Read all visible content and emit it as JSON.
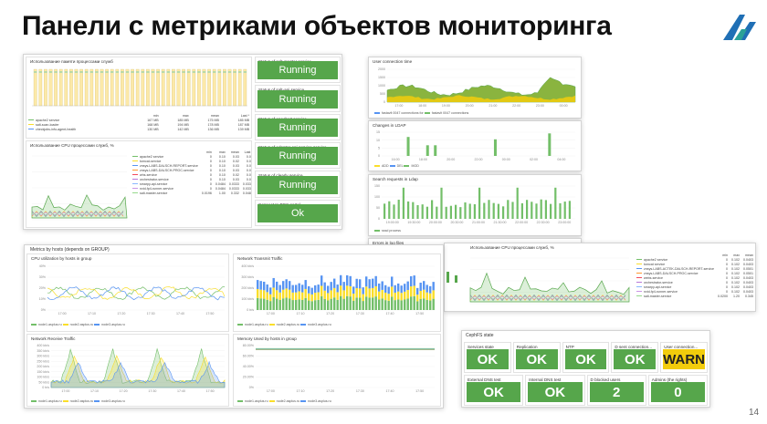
{
  "slide": {
    "title": "Панели с метриками объектов мониторинга",
    "page_number": "14"
  },
  "colors": {
    "ok_green": "#56a64b",
    "warn_yellow": "#f2cc0c",
    "series_green": "#73bf69",
    "series_yellow": "#fade2a",
    "series_blue": "#5794f2",
    "series_orange": "#ff9830",
    "series_purple": "#b877d9",
    "series_red": "#f2495c",
    "series_teal": "#8ab8ff"
  },
  "left_top": {
    "memory_panel": {
      "title": "Использование памяти процессами служб",
      "legend_header": [
        "",
        "min",
        "max",
        "mean",
        "Last *"
      ],
      "legend": [
        {
          "name": "apache2 service",
          "color": "#73bf69",
          "cells": [
            "167 MB",
            "185 MB",
            "175 MB",
            "185 MB"
          ]
        },
        {
          "name": "salt-scan-loader",
          "color": "#fade2a",
          "cells": [
            "168 MB",
            "194 MB",
            "178 MB",
            "187 MB"
          ]
        },
        {
          "name": "checkjobs-info-agent-health",
          "color": "#5794f2",
          "cells": [
            "130 MB",
            "142 MB",
            "136 MB",
            "139 MB"
          ]
        }
      ]
    },
    "cpu_panel": {
      "title": "Использование CPU процессами служб, %",
      "legend_header": [
        "",
        "min",
        "max",
        "mean",
        "Last *"
      ],
      "legend": [
        {
          "name": "apache2 service",
          "color": "#73bf69",
          "cells": [
            "0",
            "0.10",
            "0.03",
            "0.05"
          ]
        },
        {
          "name": "tomcat-service",
          "color": "#fade2a",
          "cells": [
            "0",
            "0.10",
            "0.02",
            "0.03"
          ]
        },
        {
          "name": "znsys-LABS-DALSCH-REPORT-service",
          "color": "#5794f2",
          "cells": [
            "0",
            "0.10",
            "0.03",
            "0.04"
          ]
        },
        {
          "name": "znsys-LABS-DALSCH-PROC-service",
          "color": "#ff9830",
          "cells": [
            "0",
            "0.10",
            "0.03",
            "0.04"
          ]
        },
        {
          "name": "whs-service",
          "color": "#f2495c",
          "cells": [
            "0",
            "0.10",
            "0.02",
            "0.01"
          ]
        },
        {
          "name": "orchestrator-service",
          "color": "#b877d9",
          "cells": [
            "0",
            "0.10",
            "0.03",
            "0.01"
          ]
        },
        {
          "name": "smarpy-api-service",
          "color": "#8ab8ff",
          "cells": [
            "0",
            "0.0484",
            "0.0333",
            "0.0333"
          ]
        },
        {
          "name": "nvid-fp4-runner-service",
          "color": "#ca95e5",
          "cells": [
            "0",
            "0.0484",
            "0.0333",
            "0.0333"
          ]
        },
        {
          "name": "salt-master-service",
          "color": "#96d98d",
          "cells": [
            "0.0196",
            "1.00",
            "0.332",
            "0.0484"
          ]
        }
      ]
    },
    "statuses": [
      {
        "label": "Status of salt-master service",
        "value": "Running"
      },
      {
        "label": "Status of salt-api service",
        "value": "Running"
      },
      {
        "label": "Status of apache2 service",
        "value": "Running"
      },
      {
        "label": "Status of adapter-api-service service",
        "value": "Running"
      },
      {
        "label": "Status of clearly service",
        "value": "Running"
      },
      {
        "label": "Connect to PGS portal",
        "value": "Ok"
      }
    ]
  },
  "right_top": {
    "connections": {
      "title": "User connection time",
      "y_ticks": [
        "2000",
        "1500",
        "1000",
        "500",
        "0"
      ],
      "x_ticks": [
        "17:00",
        "18:00",
        "19:00",
        "20:00",
        "21:00",
        "22:00",
        "23:00",
        "00:00"
      ],
      "legend": [
        {
          "name": "fastavlt 0047 connections for",
          "color": "#5794f2"
        },
        {
          "name": "fastavlt 0047 connections",
          "color": "#73bf69"
        }
      ]
    },
    "changes": {
      "title": "Changes in LDAP",
      "y_ticks": [
        "15",
        "10",
        "5",
        "0"
      ],
      "x_ticks": [
        "16:00",
        "18:00",
        "20:00",
        "22:00",
        "00:00",
        "02:00",
        "04:00"
      ],
      "legend": [
        {
          "name": "ADD",
          "color": "#fade2a"
        },
        {
          "name": "DEL",
          "color": "#5794f2"
        },
        {
          "name": "MOD",
          "color": "#73bf69"
        }
      ]
    },
    "search": {
      "title": "Search requests in Ldap",
      "y_ticks": [
        "150",
        "100",
        "50",
        "0"
      ],
      "x_ticks": [
        "19:00:00",
        "19:30:00",
        "20:00:00",
        "20:30:00",
        "21:00:00",
        "21:30:00",
        "22:00:00",
        "22:30:00",
        "23:00:00"
      ],
      "legend": [
        {
          "name": "sssd process",
          "color": "#73bf69"
        }
      ]
    },
    "errors_title": "Errors in log files",
    "cpu_panel": {
      "title": "Использование CPU процессами служб, %",
      "legend_header": [
        "",
        "min",
        "max",
        "mean",
        "Last *"
      ],
      "legend": [
        {
          "name": "apache2 service",
          "color": "#73bf69",
          "cells": [
            "0",
            "0.102",
            "0.0403",
            "0.0410"
          ]
        },
        {
          "name": "tomcat service",
          "color": "#fade2a",
          "cells": [
            "0",
            "0.102",
            "0.0403",
            "0.0431"
          ]
        },
        {
          "name": "znsys-LABS-ACTEK-DALSCH-REPORT-service",
          "color": "#5794f2",
          "cells": [
            "0",
            "0.102",
            "0.0501",
            "0.0431"
          ]
        },
        {
          "name": "znsys-LABS-DALSCH-PROC-service",
          "color": "#ff9830",
          "cells": [
            "0",
            "0.102",
            "0.0501",
            "0.0410"
          ]
        },
        {
          "name": "webs-service",
          "color": "#f2495c",
          "cells": [
            "0",
            "0.102",
            "0.0403",
            "0.0410"
          ]
        },
        {
          "name": "orchestrator-service",
          "color": "#b877d9",
          "cells": [
            "0",
            "0.102",
            "0.0403",
            "0.0410"
          ]
        },
        {
          "name": "smarpy-api-service",
          "color": "#8ab8ff",
          "cells": [
            "0",
            "0.102",
            "0.0403",
            "0.0410"
          ]
        },
        {
          "name": "nvid-fp4-runner-service",
          "color": "#ca95e5",
          "cells": [
            "0",
            "0.102",
            "0.0403",
            "0.0410"
          ]
        },
        {
          "name": "salt-master-service",
          "color": "#96d98d",
          "cells": [
            "0.0200",
            "1.20",
            "0.345",
            "0.0410"
          ]
        }
      ]
    }
  },
  "hosts": {
    "title": "Metrics by hosts (depends on GROUP)",
    "cpu": {
      "title": "CPU utilization by hosts in group",
      "y_ticks": [
        "40%",
        "30%",
        "20%",
        "10%",
        "0%"
      ],
      "x_ticks": [
        "17:00",
        "17:10",
        "17:20",
        "17:30",
        "17:40",
        "17:50"
      ],
      "legend": [
        {
          "name": "node1.asplus.ru",
          "color": "#73bf69"
        },
        {
          "name": "node2.asplus.ru",
          "color": "#fade2a"
        },
        {
          "name": "node3.asplus.ru",
          "color": "#5794f2"
        }
      ]
    },
    "rx": {
      "title": "Network Receive Traffic",
      "y_ticks": [
        "400 kb/s",
        "350 kb/s",
        "300 kb/s",
        "250 kb/s",
        "200 kb/s",
        "150 kb/s",
        "100 kb/s",
        "50 kb/s",
        "0 b/s"
      ],
      "x_ticks": [
        "17:00",
        "17:10",
        "17:20",
        "17:30",
        "17:40",
        "17:50"
      ],
      "legend": [
        {
          "name": "node1.asplus.ru",
          "color": "#73bf69"
        },
        {
          "name": "node2.asplus.ru",
          "color": "#fade2a"
        },
        {
          "name": "node3.asplus.ru",
          "color": "#5794f2"
        }
      ]
    },
    "tx": {
      "title": "Network Transmit Traffic",
      "y_ticks": [
        "400 kb/s",
        "300 kb/s",
        "200 kb/s",
        "100 kb/s",
        "0 b/s"
      ],
      "x_ticks": [
        "17:00",
        "17:10",
        "17:20",
        "17:30",
        "17:40",
        "17:50"
      ],
      "legend": [
        {
          "name": "node1.asplus.ru",
          "color": "#73bf69"
        },
        {
          "name": "node2.asplus.ru",
          "color": "#fade2a"
        },
        {
          "name": "node3.asplus.ru",
          "color": "#5794f2"
        }
      ]
    },
    "mem": {
      "title": "Memory Used by hosts in group",
      "y_ticks": [
        "80.00%",
        "60.00%",
        "40.00%",
        "20.00%",
        "0%"
      ],
      "x_ticks": [
        "17:00",
        "17:10",
        "17:20",
        "17:30",
        "17:40",
        "17:50"
      ],
      "legend": [
        {
          "name": "node1.asplus.ru",
          "color": "#73bf69"
        },
        {
          "name": "node2.asplus.ru",
          "color": "#fade2a"
        },
        {
          "name": "node3.asplus.ru",
          "color": "#5794f2"
        }
      ]
    }
  },
  "ceph": {
    "title": "CephFS state",
    "tiles": [
      {
        "label": "Services state",
        "value": "OK",
        "warn": false
      },
      {
        "label": "Replication",
        "value": "OK",
        "warn": false
      },
      {
        "label": "NTP",
        "value": "OK",
        "warn": false
      },
      {
        "label": "D sent connection...",
        "value": "OK",
        "warn": false
      },
      {
        "label": "User connection...",
        "value": "WARN",
        "warn": true
      },
      {
        "label": "External DNS test",
        "value": "OK",
        "warn": false
      },
      {
        "label": "Internal DNS test",
        "value": "OK",
        "warn": false
      },
      {
        "label": "D blocked users",
        "value": "2",
        "warn": false
      },
      {
        "label": "Admins (the rights)",
        "value": "0",
        "warn": false
      }
    ]
  }
}
